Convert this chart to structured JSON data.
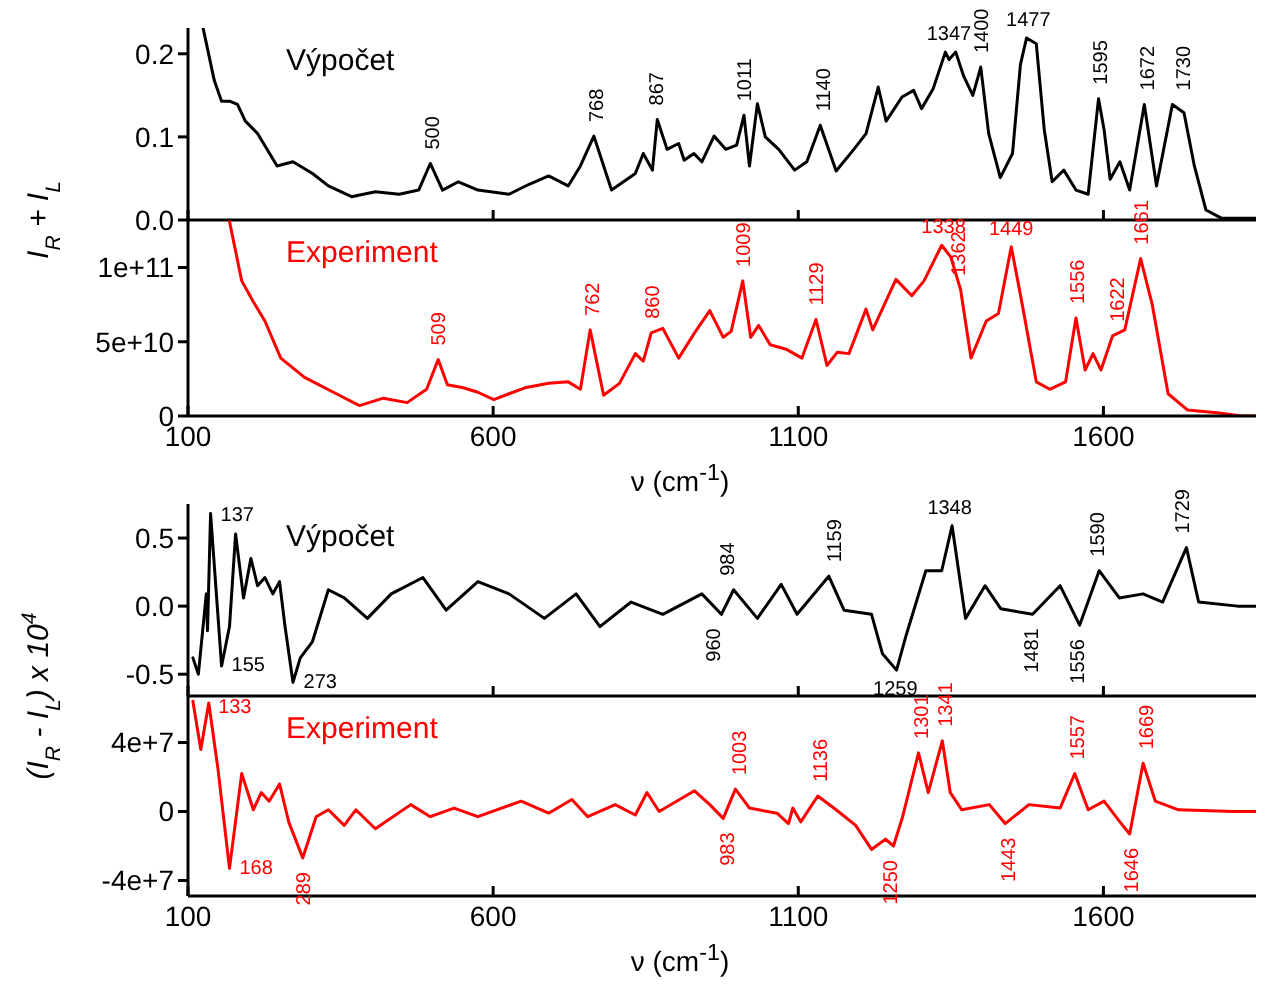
{
  "chart_data": [
    {
      "type": "line",
      "xlim": [
        100,
        1850
      ],
      "xticks": [
        100,
        600,
        1100,
        1600
      ],
      "ylim": [
        0,
        0.231
      ],
      "yticks": [
        {
          "value": 0,
          "label": "0.0"
        },
        0.1,
        0.2
      ],
      "tick_labels": "y",
      "ylabel": "I$_{R}$ + I$_{L}$",
      "series": [
        {
          "name": "Výpočet",
          "color": "#000000",
          "x": [
            125,
            143,
            155,
            168,
            181,
            194,
            214,
            246,
            272,
            304,
            330,
            368,
            407,
            446,
            478,
            497,
            517,
            543,
            575,
            626,
            659,
            691,
            723,
            743,
            765,
            794,
            833,
            846,
            861,
            869,
            885,
            904,
            913,
            929,
            942,
            962,
            981,
            999,
            1011,
            1020,
            1033,
            1046,
            1068,
            1094,
            1114,
            1136,
            1162,
            1191,
            1211,
            1231,
            1244,
            1270,
            1289,
            1302,
            1321,
            1341,
            1347,
            1358,
            1371,
            1386,
            1399,
            1412,
            1431,
            1451,
            1464,
            1474,
            1490,
            1503,
            1516,
            1535,
            1555,
            1575,
            1592,
            1601,
            1611,
            1627,
            1643,
            1667,
            1687,
            1713,
            1732,
            1749,
            1768,
            1794,
            1826,
            1850
          ],
          "values": [
            0.23,
            0.168,
            0.143,
            0.143,
            0.139,
            0.119,
            0.104,
            0.065,
            0.07,
            0.056,
            0.041,
            0.028,
            0.034,
            0.031,
            0.036,
            0.068,
            0.036,
            0.046,
            0.036,
            0.031,
            0.043,
            0.053,
            0.041,
            0.065,
            0.101,
            0.036,
            0.056,
            0.08,
            0.06,
            0.121,
            0.085,
            0.092,
            0.072,
            0.08,
            0.07,
            0.101,
            0.085,
            0.09,
            0.126,
            0.065,
            0.14,
            0.1,
            0.085,
            0.06,
            0.07,
            0.114,
            0.059,
            0.085,
            0.104,
            0.16,
            0.119,
            0.148,
            0.156,
            0.134,
            0.158,
            0.202,
            0.193,
            0.202,
            0.173,
            0.15,
            0.184,
            0.104,
            0.051,
            0.08,
            0.187,
            0.219,
            0.212,
            0.109,
            0.046,
            0.06,
            0.036,
            0.031,
            0.146,
            0.109,
            0.049,
            0.07,
            0.036,
            0.139,
            0.041,
            0.139,
            0.129,
            0.065,
            0.012,
            0.002,
            0.002,
            0.002
          ]
        }
      ],
      "annotations": [
        {
          "text": "500",
          "x": 500,
          "y": 0.068
        },
        {
          "text": "768",
          "x": 768,
          "y": 0.101
        },
        {
          "text": "867",
          "x": 867,
          "y": 0.121
        },
        {
          "text": "1011",
          "x": 1011,
          "y": 0.126
        },
        {
          "text": "1140",
          "x": 1140,
          "y": 0.114
        },
        {
          "text": "1347",
          "x": 1347,
          "y": 0.202
        },
        {
          "text": "1400",
          "x": 1400,
          "y": 0.184
        },
        {
          "text": "1477",
          "x": 1477,
          "y": 0.219
        },
        {
          "text": "1595",
          "x": 1595,
          "y": 0.146
        },
        {
          "text": "1672",
          "x": 1672,
          "y": 0.139
        },
        {
          "text": "1730",
          "x": 1730,
          "y": 0.139
        }
      ]
    },
    {
      "type": "line",
      "xlim": [
        100,
        1850
      ],
      "xticks": [
        100,
        600,
        1100,
        1600
      ],
      "ylim": [
        0,
        132000000000
      ],
      "yticks": [
        0,
        {
          "value": 50000000000,
          "label": "5e+10"
        },
        {
          "value": 100000000000,
          "label": "1e+11"
        }
      ],
      "xlabel": "ν (cm$^{-1}$)",
      "series": [
        {
          "name": "Experiment",
          "color": "#ff0000",
          "x": [
            168,
            188,
            207,
            226,
            252,
            291,
            343,
            381,
            420,
            459,
            491,
            510,
            525,
            551,
            575,
            601,
            626,
            652,
            691,
            723,
            743,
            759,
            781,
            807,
            833,
            846,
            859,
            878,
            904,
            930,
            955,
            977,
            990,
            1009,
            1022,
            1035,
            1054,
            1080,
            1106,
            1129,
            1147,
            1164,
            1183,
            1211,
            1222,
            1260,
            1286,
            1306,
            1335,
            1350,
            1366,
            1383,
            1408,
            1428,
            1449,
            1467,
            1490,
            1512,
            1538,
            1555,
            1570,
            1583,
            1596,
            1615,
            1635,
            1661,
            1680,
            1706,
            1738,
            1790,
            1826,
            1850
          ],
          "values": [
            131000000000,
            91000000000,
            77000000000,
            64000000000,
            39000000000,
            26000000000,
            15000000000,
            7000000000,
            12000000000,
            9000000000,
            18000000000,
            38000000000,
            21000000000,
            19000000000,
            16000000000,
            11000000000,
            15000000000,
            19000000000,
            22000000000,
            23000000000,
            18000000000,
            58000000000,
            14000000000,
            22000000000,
            42000000000,
            37000000000,
            56000000000,
            59000000000,
            39000000000,
            56000000000,
            71000000000,
            53000000000,
            57000000000,
            91000000000,
            53000000000,
            61000000000,
            48000000000,
            45000000000,
            39000000000,
            65000000000,
            34000000000,
            43000000000,
            42000000000,
            72000000000,
            58000000000,
            92000000000,
            81000000000,
            91000000000,
            115000000000,
            107000000000,
            85000000000,
            39000000000,
            64000000000,
            69000000000,
            114000000000,
            75000000000,
            23000000000,
            18000000000,
            23000000000,
            66000000000,
            31000000000,
            42000000000,
            31000000000,
            54000000000,
            58000000000,
            106000000000,
            75000000000,
            15000000000,
            4000000000,
            2000000000,
            0,
            0
          ]
        }
      ],
      "annotations": [
        {
          "text": "509",
          "x": 509,
          "y": 38000000000
        },
        {
          "text": "762",
          "x": 762,
          "y": 58000000000
        },
        {
          "text": "860",
          "x": 860,
          "y": 56000000000
        },
        {
          "text": "1009",
          "x": 1009,
          "y": 91000000000
        },
        {
          "text": "1129",
          "x": 1129,
          "y": 65000000000
        },
        {
          "text": "1338",
          "x": 1338,
          "y": 115000000000
        },
        {
          "text": "1362",
          "x": 1362,
          "y": 85000000000
        },
        {
          "text": "1449",
          "x": 1449,
          "y": 114000000000
        },
        {
          "text": "1556",
          "x": 1556,
          "y": 66000000000
        },
        {
          "text": "1622",
          "x": 1622,
          "y": 54000000000
        },
        {
          "text": "1661",
          "x": 1661,
          "y": 106000000000
        }
      ]
    },
    {
      "type": "line",
      "xlim": [
        100,
        1850
      ],
      "xticks": [
        100,
        600,
        1100,
        1600
      ],
      "ylim": [
        -0.66,
        0.75
      ],
      "yticks": [
        -0.5,
        {
          "value": 0,
          "label": "0.0"
        },
        0.5
      ],
      "tick_labels": "y",
      "ylabel": "(I$_{R}$ - I$_{L}$) x 10$^{4}$",
      "series": [
        {
          "name": "Výpočet",
          "color": "#000000",
          "x": [
            108,
            117,
            130,
            132,
            137,
            155,
            168,
            178,
            191,
            203,
            214,
            226,
            239,
            250,
            259,
            272,
            284,
            304,
            330,
            356,
            394,
            433,
            485,
            523,
            575,
            626,
            684,
            736,
            775,
            826,
            878,
            942,
            974,
            994,
            1033,
            1072,
            1098,
            1150,
            1175,
            1220,
            1238,
            1261,
            1277,
            1309,
            1335,
            1352,
            1374,
            1406,
            1432,
            1484,
            1529,
            1561,
            1593,
            1626,
            1665,
            1697,
            1736,
            1756,
            1820,
            1850
          ],
          "values": [
            -0.38,
            -0.5,
            0.09,
            -0.18,
            0.68,
            -0.44,
            -0.15,
            0.53,
            0.06,
            0.35,
            0.15,
            0.21,
            0.09,
            0.18,
            -0.15,
            -0.56,
            -0.38,
            -0.26,
            0.12,
            0.06,
            -0.09,
            0.09,
            0.21,
            -0.03,
            0.18,
            0.09,
            -0.09,
            0.09,
            -0.15,
            0.03,
            -0.06,
            0.09,
            -0.06,
            0.12,
            -0.09,
            0.16,
            -0.06,
            0.22,
            -0.03,
            -0.06,
            -0.35,
            -0.47,
            -0.21,
            0.26,
            0.26,
            0.59,
            -0.09,
            0.15,
            -0.02,
            -0.06,
            0.15,
            -0.14,
            0.26,
            0.06,
            0.09,
            0.03,
            0.43,
            0.03,
            0,
            0
          ]
        }
      ],
      "annotations": [
        {
          "text": "137",
          "x": 137,
          "y": 0.68
        },
        {
          "text": "155",
          "x": 155,
          "y": -0.44
        },
        {
          "text": "273",
          "x": 273,
          "y": -0.56
        },
        {
          "text": "960",
          "x": 960,
          "y": -0.06
        },
        {
          "text": "984",
          "x": 984,
          "y": 0.12
        },
        {
          "text": "1159",
          "x": 1159,
          "y": 0.22
        },
        {
          "text": "1259",
          "x": 1259,
          "y": -0.47
        },
        {
          "text": "1348",
          "x": 1348,
          "y": 0.59
        },
        {
          "text": "1481",
          "x": 1481,
          "y": -0.06
        },
        {
          "text": "1556",
          "x": 1556,
          "y": -0.14
        },
        {
          "text": "1590",
          "x": 1590,
          "y": 0.26
        },
        {
          "text": "1729",
          "x": 1729,
          "y": 0.43
        }
      ]
    },
    {
      "type": "line",
      "xlim": [
        100,
        1850
      ],
      "xticks": [
        100,
        600,
        1100,
        1600
      ],
      "ylim": [
        -49000000,
        67000000
      ],
      "yticks": [
        {
          "value": -40000000,
          "label": "-4e+7"
        },
        0,
        {
          "value": 40000000,
          "label": "4e+7"
        }
      ],
      "xlabel": "ν (cm$^{-1}$)",
      "series": [
        {
          "name": "Experiment",
          "color": "#ff0000",
          "x": [
            108,
            121,
            134,
            149,
            168,
            188,
            207,
            220,
            233,
            250,
            265,
            288,
            310,
            330,
            356,
            375,
            407,
            465,
            497,
            536,
            575,
            646,
            691,
            729,
            755,
            800,
            833,
            852,
            872,
            930,
            955,
            977,
            997,
            1020,
            1065,
            1084,
            1091,
            1104,
            1132,
            1162,
            1194,
            1220,
            1243,
            1256,
            1271,
            1297,
            1313,
            1336,
            1349,
            1368,
            1413,
            1439,
            1478,
            1529,
            1553,
            1575,
            1601,
            1627,
            1643,
            1665,
            1685,
            1723,
            1813,
            1850
          ],
          "values": [
            64000000,
            36000000,
            63000000,
            25000000,
            -33000000,
            22000000,
            1000000,
            11000000,
            6000000,
            16000000,
            -6000000,
            -27000000,
            -3000000,
            1000000,
            -8000000,
            1000000,
            -10000000,
            4000000,
            -3000000,
            2000000,
            -3000000,
            6000000,
            -1000000,
            7000000,
            -3000000,
            4000000,
            -2000000,
            11000000,
            0,
            12000000,
            4000000,
            -4000000,
            13000000,
            2000000,
            -1000000,
            -7000000,
            2000000,
            -6000000,
            9000000,
            1000000,
            -8000000,
            -22000000,
            -16000000,
            -20000000,
            -3000000,
            34000000,
            11000000,
            41000000,
            11000000,
            1000000,
            4000000,
            -7000000,
            4000000,
            2000000,
            22000000,
            1000000,
            6000000,
            -6000000,
            -13000000,
            28000000,
            6000000,
            1000000,
            0,
            0
          ]
        }
      ],
      "annotations": [
        {
          "text": "133",
          "x": 133,
          "y": 63000000
        },
        {
          "text": "168",
          "x": 168,
          "y": -33000000
        },
        {
          "text": "289",
          "x": 289,
          "y": -27000000
        },
        {
          "text": "983",
          "x": 983,
          "y": -4000000
        },
        {
          "text": "1003",
          "x": 1003,
          "y": 13000000
        },
        {
          "text": "1136",
          "x": 1136,
          "y": 9000000
        },
        {
          "text": "1250",
          "x": 1250,
          "y": -20000000
        },
        {
          "text": "1301",
          "x": 1301,
          "y": 34000000
        },
        {
          "text": "1341",
          "x": 1341,
          "y": 41000000
        },
        {
          "text": "1443",
          "x": 1443,
          "y": -7000000
        },
        {
          "text": "1557",
          "x": 1557,
          "y": 22000000
        },
        {
          "text": "1646",
          "x": 1646,
          "y": -13000000
        },
        {
          "text": "1669",
          "x": 1669,
          "y": 28000000
        }
      ]
    }
  ]
}
